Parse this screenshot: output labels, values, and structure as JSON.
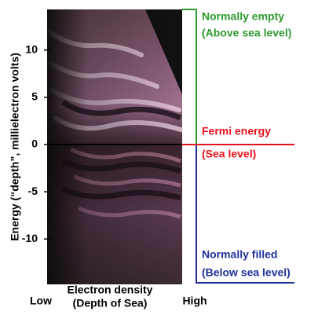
{
  "chart_data": {
    "type": "image",
    "ylabel": "Energy (“depth”, millielectron volts)",
    "xlabel": [
      "Electron density",
      "(Depth of Sea)"
    ],
    "x_low": "Low",
    "x_high": "High",
    "ylim": [
      -14.8,
      14.3
    ],
    "yticks": [
      -10,
      -5,
      0,
      5,
      10
    ],
    "annotations": [
      {
        "lines": [
          "Normally empty",
          "(Above sea level)"
        ],
        "color": "#2e9a2e"
      },
      {
        "lines": [
          "Fermi energy",
          "(Sea level)"
        ],
        "color": "#e8101c"
      },
      {
        "lines": [
          "Normally filled",
          "(Below sea level)"
        ],
        "color": "#20309c"
      }
    ]
  }
}
